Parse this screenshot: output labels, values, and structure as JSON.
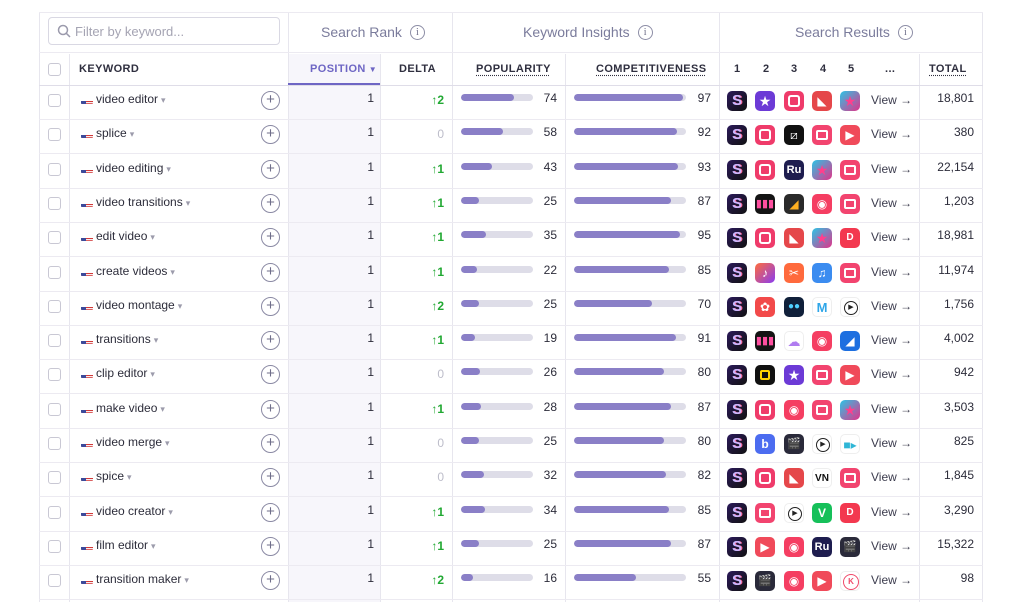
{
  "filter": {
    "placeholder": "Filter by keyword..."
  },
  "groups": {
    "search_rank": "Search Rank",
    "keyword_insights": "Keyword Insights",
    "search_results": "Search Results",
    "info_symbol": "i"
  },
  "headers": {
    "keyword": "KEYWORD",
    "position": "POSITION",
    "delta": "DELTA",
    "popularity": "POPULARITY",
    "competitiveness": "COMPETITIVENESS",
    "r1": "1",
    "r2": "2",
    "r3": "3",
    "r4": "4",
    "r5": "5",
    "more": "...",
    "total": "TOTAL"
  },
  "view_label": "View →",
  "colors": {
    "accent": "#6e66c4",
    "bar_fill": "#8a7fc7",
    "bar_track": "#dedde8",
    "delta_up": "#21a832"
  },
  "app_icon_names": [
    "splice-icon",
    "imovie-icon",
    "videoshop-icon",
    "inshot-icon",
    "capcut-icon",
    "vn-icon",
    "adobe-rush-icon",
    "youcut-icon",
    "music-icon",
    "kinemaster-icon",
    "filmora-icon"
  ],
  "rows": [
    {
      "keyword": "video editor",
      "position": "1",
      "delta": "↑2",
      "delta_dir": "up",
      "popularity": 74,
      "competitiveness": 97,
      "total": "18,801",
      "icons": [
        "splice-icon",
        "imovie-icon",
        "videoshop-icon",
        "inshot-icon",
        "star-app-icon"
      ]
    },
    {
      "keyword": "splice",
      "position": "1",
      "delta": "0",
      "delta_dir": "zero",
      "popularity": 58,
      "competitiveness": 92,
      "total": "380",
      "icons": [
        "splice-icon",
        "videoshop-icon",
        "capcut-icon",
        "video-leap-icon",
        "film-app-icon"
      ]
    },
    {
      "keyword": "video editing",
      "position": "1",
      "delta": "↑1",
      "delta_dir": "up",
      "popularity": 43,
      "competitiveness": 93,
      "total": "22,154",
      "icons": [
        "splice-icon",
        "videoshop-icon",
        "adobe-rush-icon",
        "star-app-icon",
        "video-leap-icon"
      ]
    },
    {
      "keyword": "video transitions",
      "position": "1",
      "delta": "↑1",
      "delta_dir": "up",
      "popularity": 25,
      "competitiveness": 87,
      "total": "1,203",
      "icons": [
        "splice-icon",
        "audio-wave-icon",
        "slides-app-icon",
        "camera-app-icon",
        "video-leap-icon"
      ]
    },
    {
      "keyword": "edit video",
      "position": "1",
      "delta": "↑1",
      "delta_dir": "up",
      "popularity": 35,
      "competitiveness": 95,
      "total": "18,981",
      "icons": [
        "splice-icon",
        "videoshop-icon",
        "inshot-icon",
        "star-app-icon",
        "youcut-icon"
      ]
    },
    {
      "keyword": "create videos",
      "position": "1",
      "delta": "↑1",
      "delta_dir": "up",
      "popularity": 22,
      "competitiveness": 85,
      "total": "11,974",
      "icons": [
        "splice-icon",
        "music-icon",
        "scissors-app-icon",
        "music-note-icon",
        "video-leap-icon"
      ]
    },
    {
      "keyword": "video montage",
      "position": "1",
      "delta": "↑2",
      "delta_dir": "up",
      "popularity": 25,
      "competitiveness": 70,
      "total": "1,756",
      "icons": [
        "splice-icon",
        "film-reel-icon",
        "dots-app-icon",
        "m-app-icon",
        "play-icon"
      ]
    },
    {
      "keyword": "transitions",
      "position": "1",
      "delta": "↑1",
      "delta_dir": "up",
      "popularity": 19,
      "competitiveness": 91,
      "total": "4,002",
      "icons": [
        "splice-icon",
        "audio-wave-icon",
        "cloud-app-icon",
        "camera-app-icon",
        "clip-app-icon"
      ]
    },
    {
      "keyword": "clip editor",
      "position": "1",
      "delta": "0",
      "delta_dir": "zero",
      "popularity": 26,
      "competitiveness": 80,
      "total": "942",
      "icons": [
        "splice-icon",
        "frame-app-icon",
        "imovie-icon",
        "video-leap-icon",
        "film-app-icon"
      ]
    },
    {
      "keyword": "make video",
      "position": "1",
      "delta": "↑1",
      "delta_dir": "up",
      "popularity": 28,
      "competitiveness": 87,
      "total": "3,503",
      "icons": [
        "splice-icon",
        "videoshop-icon",
        "camera-app-icon",
        "video-leap-icon",
        "star-app-icon"
      ]
    },
    {
      "keyword": "video merge",
      "position": "1",
      "delta": "0",
      "delta_dir": "zero",
      "popularity": 25,
      "competitiveness": 80,
      "total": "825",
      "icons": [
        "splice-icon",
        "merge-app-icon",
        "clapper-icon",
        "play-icon",
        "video-camera-icon"
      ]
    },
    {
      "keyword": "spice",
      "position": "1",
      "delta": "0",
      "delta_dir": "zero",
      "popularity": 32,
      "competitiveness": 82,
      "total": "1,845",
      "icons": [
        "splice-icon",
        "videoshop-icon",
        "inshot-icon",
        "vn-icon",
        "video-leap-icon"
      ]
    },
    {
      "keyword": "video creator",
      "position": "1",
      "delta": "↑1",
      "delta_dir": "up",
      "popularity": 34,
      "competitiveness": 85,
      "total": "3,290",
      "icons": [
        "splice-icon",
        "video-leap-icon",
        "play-icon",
        "vimeo-icon",
        "youcut-icon"
      ]
    },
    {
      "keyword": "film editor",
      "position": "1",
      "delta": "↑1",
      "delta_dir": "up",
      "popularity": 25,
      "competitiveness": 87,
      "total": "15,322",
      "icons": [
        "splice-icon",
        "film-app-icon",
        "camera-app-icon",
        "adobe-rush-icon",
        "clapper-icon"
      ]
    },
    {
      "keyword": "transition maker",
      "position": "1",
      "delta": "↑2",
      "delta_dir": "up",
      "popularity": 16,
      "competitiveness": 55,
      "total": "98",
      "icons": [
        "splice-icon",
        "clapper-icon",
        "camera-app-icon",
        "film-app-icon",
        "k-app-icon"
      ]
    }
  ]
}
